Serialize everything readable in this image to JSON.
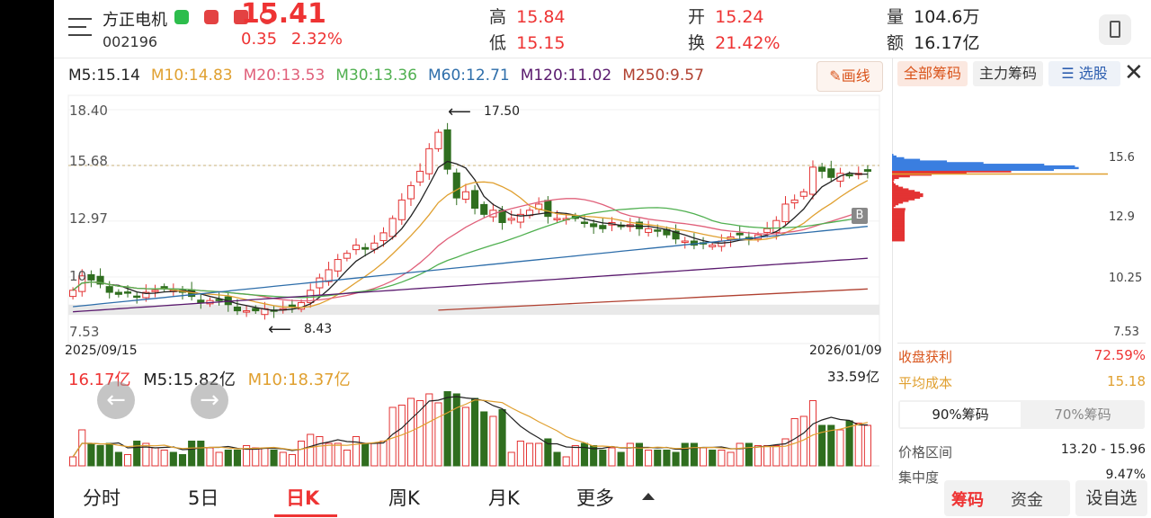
{
  "stock": {
    "name": "方正电机",
    "code": "002196",
    "price": "15.41",
    "change": "0.35",
    "change_pct": "2.32%"
  },
  "quote": {
    "high_label": "高",
    "high": "15.84",
    "low_label": "低",
    "low": "15.15",
    "open_label": "开",
    "open": "15.24",
    "turnover_label": "换",
    "turnover": "21.42%",
    "volume_label": "量",
    "volume": "104.6万",
    "amount_label": "额",
    "amount": "16.17亿"
  },
  "ma_legend": [
    {
      "text": "M5:15.14",
      "color": "#222222"
    },
    {
      "text": "M10:14.83",
      "color": "#e0a030"
    },
    {
      "text": "M20:13.53",
      "color": "#e0607a"
    },
    {
      "text": "M30:13.36",
      "color": "#50b050"
    },
    {
      "text": "M60:12.71",
      "color": "#2e6eaa"
    },
    {
      "text": "M120:11.02",
      "color": "#5a1a6e"
    },
    {
      "text": "M250:9.57",
      "color": "#b04030"
    }
  ],
  "draw_button": "画线",
  "chart_labels": {
    "y_ticks": [
      "18.40",
      "15.68",
      "12.97",
      "10",
      "7.53"
    ],
    "start_date": "2025/09/15",
    "end_date": "2026/01/09",
    "high_marker": "17.50",
    "low_marker": "8.43",
    "badge_b": "B"
  },
  "volume_panel": {
    "amount": "16.17亿",
    "m5": "M5:15.82亿",
    "m10": "M10:18.37亿",
    "max": "33.59亿"
  },
  "right_panel": {
    "tabs": [
      "全部筹码",
      "主力筹码",
      "选股"
    ],
    "price_ticks": [
      "15.6",
      "12.9",
      "10.25",
      "7.53"
    ],
    "profit_label": "收盘获利",
    "profit_value": "72.59%",
    "avg_cost_label": "平均成本",
    "avg_cost_value": "15.18",
    "range_tabs": [
      "90%筹码",
      "70%筹码"
    ],
    "price_range_label": "价格区间",
    "price_range_value": "13.20 - 15.96",
    "concentration_label": "集中度",
    "concentration_value": "9.47%",
    "bottom_buttons": [
      "筹码",
      "资金"
    ],
    "settings": "设自选"
  },
  "bottom_tabs": [
    "分时",
    "5日",
    "日K",
    "周K",
    "月K",
    "更多"
  ],
  "colors": {
    "up": "#e33333",
    "down": "#2f6e1f",
    "accent": "#d9541b"
  },
  "chart_data": {
    "type": "candlestick",
    "x_start": "2025/09/15",
    "x_end": "2026/01/09",
    "ylim": [
      7.53,
      18.4
    ],
    "y_ticks": [
      18.4,
      15.68,
      12.97,
      10.25,
      7.53
    ],
    "last_close": 15.41,
    "high_point": 17.5,
    "low_point": 8.43,
    "ma": {
      "M5": 15.14,
      "M10": 14.83,
      "M20": 13.53,
      "M30": 13.36,
      "M60": 12.71,
      "M120": 11.02,
      "M250": 9.57
    },
    "closes": [
      9.6,
      10.3,
      10.1,
      9.9,
      9.5,
      9.4,
      9.5,
      9.3,
      9.5,
      9.6,
      9.7,
      9.6,
      9.5,
      9.3,
      9.0,
      9.1,
      9.1,
      8.9,
      8.6,
      8.6,
      8.6,
      8.7,
      8.6,
      8.7,
      8.8,
      9.0,
      9.6,
      10.2,
      10.6,
      11.1,
      11.4,
      11.8,
      11.6,
      11.9,
      12.4,
      13.1,
      14.0,
      14.7,
      15.4,
      16.5,
      17.3,
      15.5,
      14.1,
      14.4,
      13.6,
      13.3,
      13.5,
      12.9,
      13.1,
      13.3,
      13.5,
      13.8,
      13.2,
      13.1,
      13.1,
      13.1,
      12.9,
      12.7,
      12.6,
      12.9,
      12.7,
      12.8,
      12.6,
      12.6,
      12.5,
      12.3,
      12.1,
      12.0,
      11.8,
      11.9,
      11.8,
      12.0,
      12.2,
      12.3,
      12.1,
      12.3,
      12.6,
      13.0,
      13.8,
      14.0,
      14.4,
      15.6,
      15.4,
      15.1,
      15.3,
      15.2,
      15.3,
      15.4
    ],
    "volume_ylim": [
      0,
      33.59
    ],
    "volume_last": 16.17
  }
}
